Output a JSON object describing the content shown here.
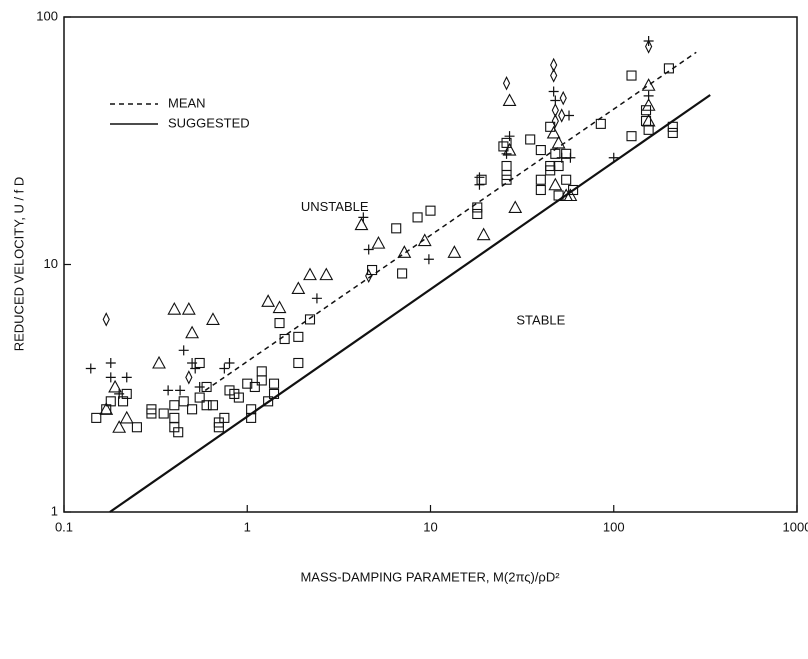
{
  "chart_data": {
    "type": "scatter",
    "x_label": "MASS-DAMPING PARAMETER, M(2πς)/ρD²",
    "y_label": "REDUCED VELOCITY, U / f D",
    "xscale": "log",
    "yscale": "log",
    "xlim": [
      0.1,
      1000
    ],
    "ylim": [
      1,
      100
    ],
    "xticks": [
      0.1,
      1,
      10,
      100,
      1000
    ],
    "yticks": [
      1,
      10,
      100
    ],
    "annotations": [
      {
        "text": "UNSTABLE",
        "x": 3,
        "y": 17
      },
      {
        "text": "STABLE",
        "x": 40,
        "y": 5.9
      }
    ],
    "lines": [
      {
        "name": "MEAN",
        "style": "dashed",
        "color": "#111111",
        "x": [
          0.59,
          282
        ],
        "y": [
          3.1,
          72
        ]
      },
      {
        "name": "SUGGESTED",
        "style": "solid",
        "color": "#111111",
        "x": [
          0.178,
          336
        ],
        "y": [
          1,
          48.4
        ]
      }
    ],
    "series": [
      {
        "marker": "square",
        "color": "#111111",
        "x": [
          0.15,
          0.17,
          0.18,
          0.21,
          0.22,
          0.25,
          0.3,
          0.3,
          0.35,
          0.4,
          0.4,
          0.4,
          0.42,
          0.45,
          0.5,
          0.55,
          0.55,
          0.6,
          0.6,
          0.65,
          0.7,
          0.7,
          0.75,
          0.8,
          0.85,
          0.9,
          1.0,
          1.05,
          1.05,
          1.1,
          1.2,
          1.2,
          1.3,
          1.4,
          1.4,
          1.5,
          1.6,
          1.9,
          1.9,
          2.2,
          4.8,
          6.5,
          7,
          8.5,
          10,
          18,
          18,
          19,
          25,
          26,
          26,
          26,
          26,
          35,
          40,
          40,
          40,
          45,
          45,
          45,
          48,
          50,
          50,
          55,
          55,
          60,
          85,
          125,
          125,
          150,
          150,
          155,
          200,
          210,
          210
        ],
        "values": [
          2.4,
          2.6,
          2.8,
          2.8,
          3.0,
          2.2,
          2.6,
          2.5,
          2.5,
          2.7,
          2.4,
          2.2,
          2.1,
          2.8,
          2.6,
          2.9,
          4.0,
          2.7,
          3.2,
          2.7,
          2.3,
          2.2,
          2.4,
          3.1,
          3.0,
          2.9,
          3.3,
          2.4,
          2.6,
          3.2,
          3.4,
          3.7,
          2.8,
          3.0,
          3.3,
          5.8,
          5.0,
          5.1,
          4.0,
          6.0,
          9.5,
          14,
          9.2,
          15.5,
          16.5,
          17,
          16,
          22,
          30,
          31,
          25,
          23,
          22,
          32,
          29,
          20,
          22,
          36,
          24,
          25,
          28,
          25,
          19,
          22,
          28,
          20,
          37,
          58,
          33,
          38,
          42,
          35,
          62,
          36,
          34
        ]
      },
      {
        "marker": "triangle",
        "color": "#111111",
        "x": [
          0.17,
          0.19,
          0.2,
          0.22,
          0.33,
          0.4,
          0.48,
          0.5,
          0.65,
          1.3,
          1.5,
          1.9,
          2.2,
          2.7,
          4.2,
          5.2,
          7.2,
          9.3,
          13.5,
          19.5,
          27,
          27,
          29,
          47,
          48,
          50,
          55,
          58,
          155,
          155,
          155
        ],
        "values": [
          2.6,
          3.2,
          2.2,
          2.4,
          4.0,
          6.6,
          6.6,
          5.3,
          6.0,
          7.1,
          6.7,
          8.0,
          9.1,
          9.1,
          14.5,
          12.2,
          11.2,
          12.5,
          11.2,
          13.2,
          46,
          29,
          17,
          34,
          21,
          31,
          19,
          19,
          53,
          44,
          38
        ]
      },
      {
        "marker": "plus",
        "color": "#111111",
        "x": [
          0.14,
          0.18,
          0.18,
          0.2,
          0.22,
          0.37,
          0.43,
          0.45,
          0.5,
          0.52,
          0.75,
          0.8,
          0.55,
          2.4,
          4.3,
          4.6,
          9.8,
          18.5,
          18.5,
          26,
          27,
          47,
          48,
          52,
          57,
          58,
          100,
          155,
          155
        ],
        "values": [
          3.8,
          3.5,
          4.0,
          3.0,
          3.5,
          3.1,
          3.1,
          4.5,
          4.0,
          3.8,
          3.8,
          4.0,
          3.2,
          7.3,
          15.5,
          11.5,
          10.5,
          22.5,
          21,
          28,
          33,
          50,
          46,
          27,
          40,
          27,
          27,
          80,
          48
        ]
      },
      {
        "marker": "diamond",
        "color": "#111111",
        "x": [
          0.17,
          0.48,
          4.6,
          26,
          47,
          47,
          48,
          48,
          53,
          52,
          155
        ],
        "values": [
          6.0,
          3.5,
          9.0,
          54,
          64,
          58,
          42,
          38,
          47,
          40,
          76
        ]
      }
    ]
  }
}
